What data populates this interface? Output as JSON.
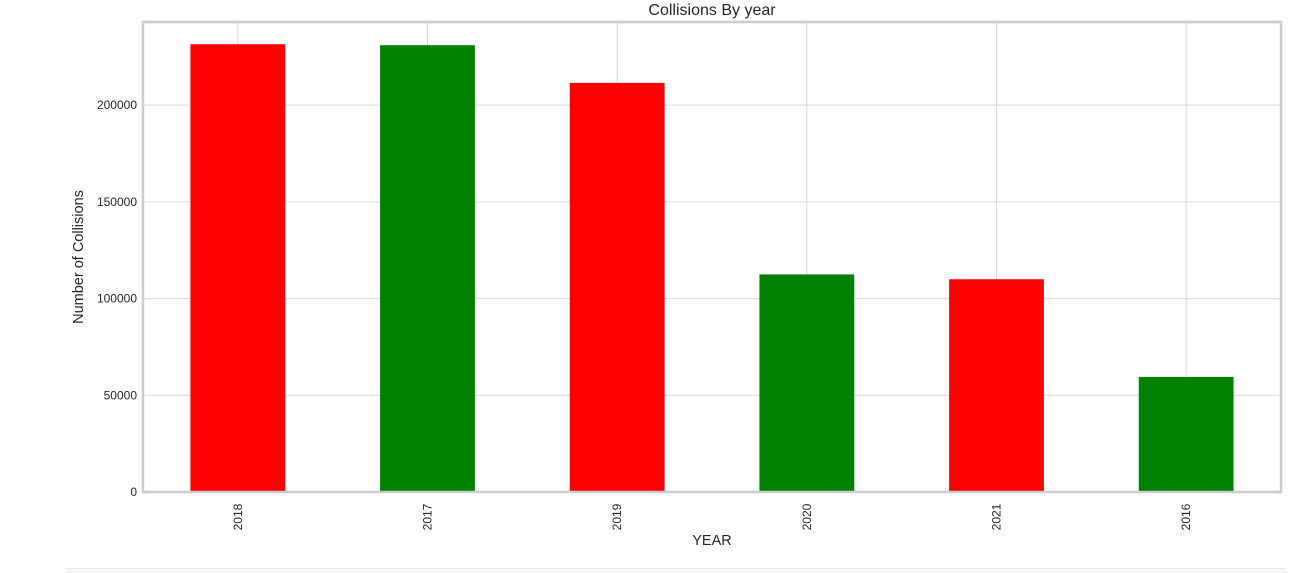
{
  "chart_data": {
    "type": "bar",
    "title": "Collisions By year",
    "xlabel": "YEAR",
    "ylabel": "Number of Collisions",
    "categories": [
      "2018",
      "2017",
      "2019",
      "2020",
      "2021",
      "2016"
    ],
    "values": [
      231500,
      231000,
      211500,
      112500,
      110000,
      59500
    ],
    "bar_colors": [
      "#ff0000",
      "#008000",
      "#ff0000",
      "#008000",
      "#ff0000",
      "#008000"
    ],
    "yticks": [
      0,
      50000,
      100000,
      150000,
      200000
    ],
    "ylim": [
      0,
      243000
    ],
    "grid": true
  }
}
